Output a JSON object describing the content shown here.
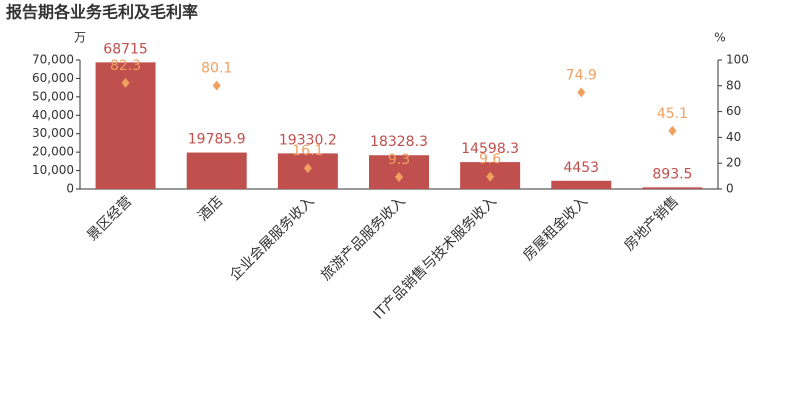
{
  "chart_data": {
    "type": "bar",
    "title": "报告期各业务毛利及毛利率",
    "y_label": "万",
    "y2_label": "%",
    "categories": [
      "景区经营",
      "酒店",
      "企业会展服务收入",
      "旅游产品服务收入",
      "IT产品销售与技术服务收入",
      "房屋租金收入",
      "房地产销售"
    ],
    "series": [
      {
        "type": "bar",
        "color": "#c0504d",
        "values": [
          68715,
          19785.9,
          19330.2,
          18328.3,
          14598.3,
          4453,
          893.5
        ]
      },
      {
        "type": "scatter",
        "axis": "y2",
        "color": "#f0a060",
        "values": [
          82.3,
          80.1,
          16.1,
          9.3,
          9.6,
          74.9,
          45.1
        ]
      }
    ],
    "ylim": [
      0,
      70000
    ],
    "yticks": [
      0,
      {
        "value": 10000,
        "label": "10,000"
      },
      {
        "value": 20000,
        "label": "20,000"
      },
      {
        "value": 30000,
        "label": "30,000"
      },
      {
        "value": 40000,
        "label": "40,000"
      },
      {
        "value": 50000,
        "label": "50,000"
      },
      {
        "value": 60000,
        "label": "60,000"
      },
      {
        "value": 70000,
        "label": "70,000"
      }
    ],
    "y2lim": [
      0,
      100
    ],
    "y2ticks": [
      0,
      20,
      40,
      60,
      80,
      100
    ]
  }
}
